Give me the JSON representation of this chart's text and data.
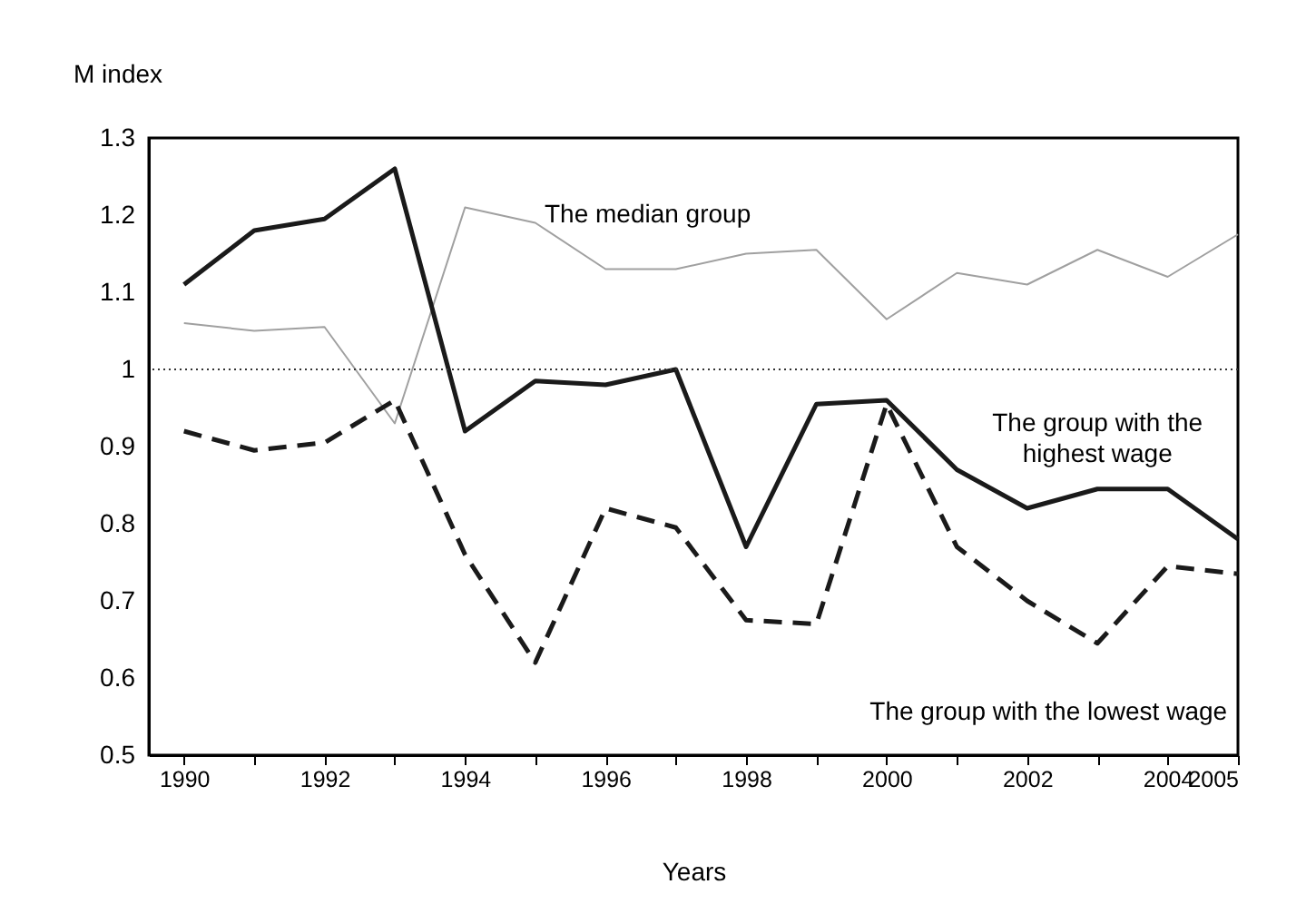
{
  "chart_data": {
    "type": "line",
    "xlabel": "Years",
    "ylabel": "M index",
    "x": [
      1990,
      1991,
      1992,
      1993,
      1994,
      1995,
      1996,
      1997,
      1998,
      1999,
      2000,
      2001,
      2002,
      2003,
      2004,
      2005
    ],
    "series": [
      {
        "color": "#a0a0a0",
        "line_style": "solid",
        "values": [
          1.06,
          1.05,
          1.055,
          0.93,
          1.21,
          1.19,
          1.13,
          1.13,
          1.15,
          1.155,
          1.065,
          1.125,
          1.11,
          1.155,
          1.12,
          1.175
        ]
      },
      {
        "color": "#1a1a1a",
        "line_style": "solid",
        "values": [
          1.11,
          1.18,
          1.195,
          1.26,
          0.92,
          0.985,
          0.98,
          1.0,
          0.77,
          0.955,
          0.96,
          0.87,
          0.82,
          0.845,
          0.845,
          0.78
        ]
      },
      {
        "color": "#1a1a1a",
        "line_style": "dashed",
        "values": [
          0.92,
          0.895,
          0.905,
          0.96,
          0.76,
          0.62,
          0.82,
          0.795,
          0.675,
          0.67,
          0.955,
          0.77,
          0.7,
          0.645,
          0.745,
          0.735
        ]
      }
    ],
    "xlim": [
      1989.5,
      2005
    ],
    "xticks": [
      1990,
      {
        "value": 1991,
        "label": null
      },
      1992,
      {
        "value": 1993,
        "label": null
      },
      1994,
      {
        "value": 1995,
        "label": null
      },
      1996,
      {
        "value": 1997,
        "label": null
      },
      1998,
      {
        "value": 1999,
        "label": null
      },
      2000,
      {
        "value": 2001,
        "label": null
      },
      2002,
      {
        "value": 2003,
        "label": null
      },
      2004,
      2005
    ],
    "ylim": [
      0.5,
      1.3
    ],
    "yticks": [
      0.5,
      0.6,
      0.7,
      0.8,
      0.9,
      1,
      1.1,
      1.2,
      1.3
    ],
    "ref_lines": [
      {
        "axis": "y",
        "value": 1,
        "label": null,
        "line_style": "dotted",
        "color": "#333333"
      }
    ],
    "annotations": [
      "The median group",
      "The group with the\nhighest wage",
      "The group with the lowest  wage"
    ],
    "grid": false,
    "marker": "none"
  }
}
